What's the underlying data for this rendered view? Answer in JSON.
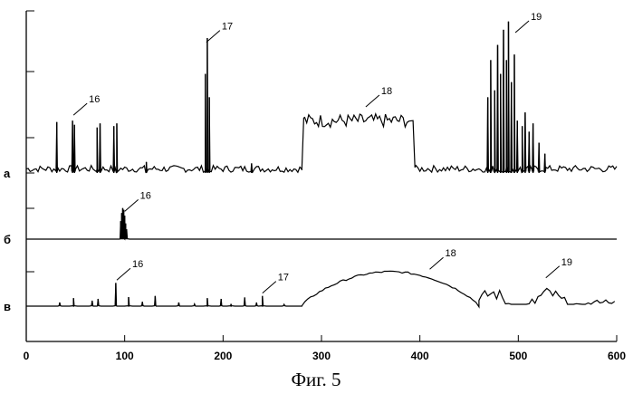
{
  "chart_data": {
    "type": "line",
    "caption": "Фиг. 5",
    "xlim": [
      0,
      600
    ],
    "x_ticks": [
      0,
      100,
      200,
      300,
      400,
      500,
      600
    ],
    "x_tick_labels": [
      "0",
      "100",
      "200",
      "300",
      "400",
      "500",
      "600"
    ],
    "grid": false,
    "panels": [
      {
        "id": "a",
        "letter": "а",
        "annotations": [
          {
            "label": "16",
            "x": 48,
            "y": 0.42
          },
          {
            "label": "17",
            "x": 183,
            "y": 0.95
          },
          {
            "label": "18",
            "x": 345,
            "y": 0.48
          },
          {
            "label": "19",
            "x": 497,
            "y": 1.02
          }
        ],
        "segments": [
          {
            "x0": 0,
            "x1": 280,
            "base": 0.03,
            "noise": 0.025,
            "step": 2
          },
          {
            "x": 280,
            "value": 0.02
          },
          {
            "x": 282,
            "value": 0.4
          },
          {
            "x0": 283,
            "x1": 390,
            "base": 0.38,
            "noise": 0.05,
            "step": 2
          },
          {
            "x": 393,
            "value": 0.38
          },
          {
            "x": 395,
            "value": 0.04
          },
          {
            "x0": 396,
            "x1": 600,
            "base": 0.03,
            "noise": 0.025,
            "step": 2
          }
        ],
        "spikes": [
          {
            "x": 31,
            "h": 0.37
          },
          {
            "x": 47,
            "h": 0.38
          },
          {
            "x": 49,
            "h": 0.35
          },
          {
            "x": 72,
            "h": 0.33
          },
          {
            "x": 75,
            "h": 0.36
          },
          {
            "x": 89,
            "h": 0.34
          },
          {
            "x": 92,
            "h": 0.36
          },
          {
            "x": 122,
            "h": 0.08
          },
          {
            "x": 182,
            "h": 0.72
          },
          {
            "x": 184,
            "h": 0.98
          },
          {
            "x": 186,
            "h": 0.55
          },
          {
            "x": 229,
            "h": 0.07
          },
          {
            "x": 469,
            "h": 0.55
          },
          {
            "x": 472,
            "h": 0.82
          },
          {
            "x": 476,
            "h": 0.6
          },
          {
            "x": 479,
            "h": 0.93
          },
          {
            "x": 482,
            "h": 0.72
          },
          {
            "x": 485,
            "h": 1.04
          },
          {
            "x": 488,
            "h": 0.82
          },
          {
            "x": 490,
            "h": 1.1
          },
          {
            "x": 493,
            "h": 0.66
          },
          {
            "x": 496,
            "h": 0.86
          },
          {
            "x": 499,
            "h": 0.38
          },
          {
            "x": 504,
            "h": 0.34
          },
          {
            "x": 507,
            "h": 0.44
          },
          {
            "x": 511,
            "h": 0.3
          },
          {
            "x": 515,
            "h": 0.36
          },
          {
            "x": 521,
            "h": 0.22
          },
          {
            "x": 527,
            "h": 0.14
          }
        ]
      },
      {
        "id": "b",
        "letter": "б",
        "annotations": [
          {
            "label": "16",
            "x": 100,
            "y": 0.85
          }
        ],
        "segments": [
          {
            "x0": 0,
            "x1": 600,
            "base": 0.0,
            "noise": 0.0,
            "step": 5
          }
        ],
        "spikes": [
          {
            "x": 96,
            "h": 0.55
          },
          {
            "x": 97,
            "h": 0.8
          },
          {
            "x": 98,
            "h": 0.95
          },
          {
            "x": 99,
            "h": 0.9
          },
          {
            "x": 100,
            "h": 0.72
          },
          {
            "x": 101,
            "h": 0.48
          },
          {
            "x": 102,
            "h": 0.3
          }
        ]
      },
      {
        "id": "c",
        "letter": "в",
        "annotations": [
          {
            "label": "16",
            "x": 92,
            "y": 0.72
          },
          {
            "label": "17",
            "x": 240,
            "y": 0.36
          },
          {
            "label": "18",
            "x": 410,
            "y": 1.02
          },
          {
            "label": "19",
            "x": 528,
            "y": 0.78
          }
        ],
        "segments": [
          {
            "x0": 0,
            "x1": 280,
            "base": 0.0,
            "noise": 0.0,
            "step": 4
          },
          {
            "x0": 280,
            "x1": 460,
            "curve": "hump",
            "peak": 0.95,
            "noise": 0.05,
            "step": 3
          },
          {
            "x0": 460,
            "x1": 600,
            "curve": "bumps",
            "base": 0.05,
            "noise": 0.1,
            "step": 3
          }
        ],
        "spikes": [
          {
            "x": 34,
            "h": 0.1
          },
          {
            "x": 48,
            "h": 0.22
          },
          {
            "x": 67,
            "h": 0.15
          },
          {
            "x": 73,
            "h": 0.2
          },
          {
            "x": 91,
            "h": 0.64
          },
          {
            "x": 104,
            "h": 0.25
          },
          {
            "x": 118,
            "h": 0.12
          },
          {
            "x": 131,
            "h": 0.28
          },
          {
            "x": 155,
            "h": 0.1
          },
          {
            "x": 171,
            "h": 0.06
          },
          {
            "x": 184,
            "h": 0.22
          },
          {
            "x": 198,
            "h": 0.2
          },
          {
            "x": 208,
            "h": 0.06
          },
          {
            "x": 222,
            "h": 0.24
          },
          {
            "x": 234,
            "h": 0.1
          },
          {
            "x": 240,
            "h": 0.28
          },
          {
            "x": 262,
            "h": 0.05
          }
        ]
      }
    ]
  }
}
